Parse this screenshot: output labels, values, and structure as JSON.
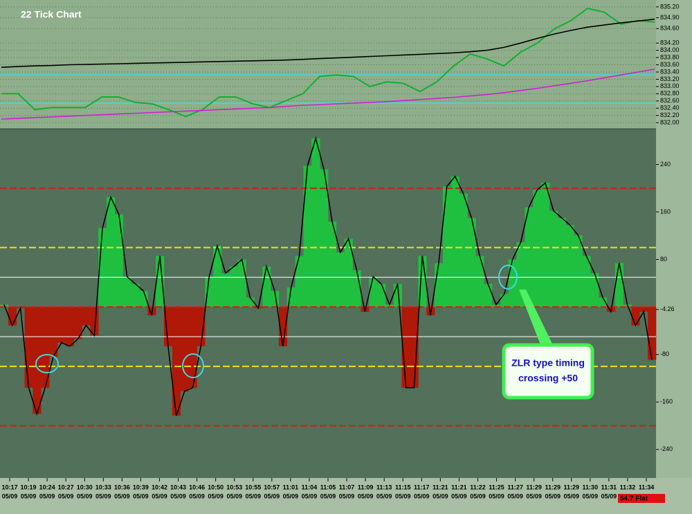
{
  "chart_data": [
    {
      "type": "line",
      "title": "22 Tick Chart",
      "ylim": [
        831.83,
        835.39
      ],
      "yticks": [
        {
          "value": 835.2,
          "label": "835.20"
        },
        {
          "value": 834.9,
          "label": "834.90"
        },
        {
          "value": 834.6,
          "label": "834.60"
        },
        {
          "value": 834.2,
          "label": "834.20"
        },
        {
          "value": 834.0,
          "label": "834.00"
        },
        {
          "value": 833.8,
          "label": "833.80"
        },
        {
          "value": 833.6,
          "label": "833.60"
        },
        {
          "value": 833.4,
          "label": "833.40"
        },
        {
          "value": 833.2,
          "label": "833.20"
        },
        {
          "value": 833.0,
          "label": "833.00"
        },
        {
          "value": 832.8,
          "label": "832.80"
        },
        {
          "value": 832.6,
          "label": "832.60"
        },
        {
          "value": 832.4,
          "label": "832.40"
        },
        {
          "value": 832.2,
          "label": "832.20"
        },
        {
          "value": 832.0,
          "label": "832.00"
        }
      ],
      "grid": true,
      "hlines": [
        {
          "value": 833.32,
          "color": "#34e0e0"
        },
        {
          "value": 832.54,
          "color": "#34e0e0"
        }
      ],
      "series": [
        {
          "color": "#10b030",
          "values": [
            832.8,
            832.8,
            832.36,
            832.42,
            832.42,
            832.42,
            832.71,
            832.71,
            832.56,
            832.52,
            832.36,
            832.17,
            832.36,
            832.71,
            832.71,
            832.52,
            832.42,
            832.61,
            832.8,
            833.28,
            833.32,
            833.28,
            833.0,
            833.13,
            833.09,
            832.86,
            833.13,
            833.57,
            833.9,
            833.76,
            833.57,
            833.95,
            834.2,
            834.59,
            834.82,
            835.16,
            835.05,
            834.72,
            834.82,
            834.78
          ]
        },
        {
          "color": "#000000",
          "values": [
            833.53,
            833.55,
            833.57,
            833.58,
            833.6,
            833.61,
            833.62,
            833.63,
            833.64,
            833.65,
            833.66,
            833.67,
            833.68,
            833.69,
            833.7,
            833.71,
            833.72,
            833.73,
            833.75,
            833.77,
            833.79,
            833.81,
            833.83,
            833.85,
            833.87,
            833.89,
            833.91,
            833.93,
            833.96,
            834.0,
            834.08,
            834.2,
            834.33,
            834.45,
            834.55,
            834.64,
            834.7,
            834.76,
            834.81,
            834.86
          ]
        },
        {
          "color": "#d020d0",
          "values": [
            832.1,
            832.12,
            832.14,
            832.16,
            832.18,
            832.2,
            832.22,
            832.24,
            832.26,
            832.28,
            832.3,
            832.32,
            832.34,
            832.36,
            832.38,
            832.4,
            832.42,
            832.45,
            832.48,
            832.5,
            832.52,
            832.54,
            832.56,
            832.58,
            832.61,
            832.64,
            832.67,
            832.7,
            832.74,
            832.78,
            832.83,
            832.89,
            832.95,
            833.02,
            833.09,
            833.16,
            833.24,
            833.32,
            833.4,
            833.48
          ]
        }
      ]
    },
    {
      "type": "bar",
      "ylim": [
        -288,
        300
      ],
      "yticks": [
        240,
        160,
        80,
        -4.26,
        -80,
        -160,
        -240
      ],
      "hlines": [
        {
          "value": 200,
          "color": "#d02010",
          "style": "dashed"
        },
        {
          "value": 100,
          "color": "#f0e020",
          "style": "dashed"
        },
        {
          "value": 50,
          "color": "#ffffff",
          "style": "solid"
        },
        {
          "value": 0,
          "color": "#d02010",
          "style": "dashed"
        },
        {
          "value": -50,
          "color": "#ffffff",
          "style": "solid"
        },
        {
          "value": -100,
          "color": "#f0e020",
          "style": "dashed"
        },
        {
          "value": -200,
          "color": "#d02010",
          "style": "dashed"
        }
      ],
      "positive_color": "#1fc040",
      "negative_color": "#b01808",
      "line_color": "#000000",
      "values": [
        4,
        -31,
        -2,
        -136,
        -180,
        -136,
        -84,
        -60,
        -66,
        -54,
        -31,
        -48,
        133,
        185,
        156,
        51,
        39,
        27,
        -14,
        86,
        -66,
        -183,
        -142,
        -136,
        -66,
        51,
        103,
        57,
        68,
        80,
        16,
        -2,
        68,
        27,
        -66,
        33,
        86,
        238,
        284,
        232,
        144,
        92,
        115,
        62,
        -8,
        51,
        39,
        4,
        39,
        -136,
        -136,
        86,
        -14,
        74,
        203,
        220,
        191,
        150,
        86,
        39,
        4,
        22,
        80,
        109,
        168,
        197,
        209,
        162,
        150,
        138,
        121,
        86,
        57,
        16,
        -8,
        74,
        4,
        -31,
        -8,
        -89
      ],
      "x_axis": {
        "times": [
          "10:17",
          "10:19",
          "10:24",
          "10:27",
          "10:30",
          "10:33",
          "10:36",
          "10:39",
          "10:42",
          "10:43",
          "10:46",
          "10:50",
          "10:53",
          "10:55",
          "10:57",
          "11:01",
          "11:04",
          "11:05",
          "11:07",
          "11:09",
          "11:13",
          "11:15",
          "11:17",
          "11:21",
          "11:21",
          "11:22",
          "11:25",
          "11:27",
          "11:29",
          "11:29",
          "11:29",
          "11:30",
          "11:31",
          "11:32",
          "11:34"
        ],
        "dates": [
          "05/09",
          "05/09",
          "05/09",
          "05/09",
          "05/09",
          "05/09",
          "05/09",
          "05/09",
          "05/09",
          "05/09",
          "05/09",
          "05/09",
          "05/09",
          "05/09",
          "05/09",
          "05/09",
          "05/09",
          "05/09",
          "05/09",
          "05/09",
          "05/09",
          "05/09",
          "05/09",
          "05/09",
          "05/09",
          "05/09",
          "05/09",
          "05/09",
          "05/09",
          "05/09",
          "05/09",
          "05/09",
          "05/09",
          "05/09",
          "05/09"
        ]
      },
      "annotations": [
        "ZLR type timing",
        "crossing +50"
      ],
      "status": "54.7 Flat"
    }
  ]
}
